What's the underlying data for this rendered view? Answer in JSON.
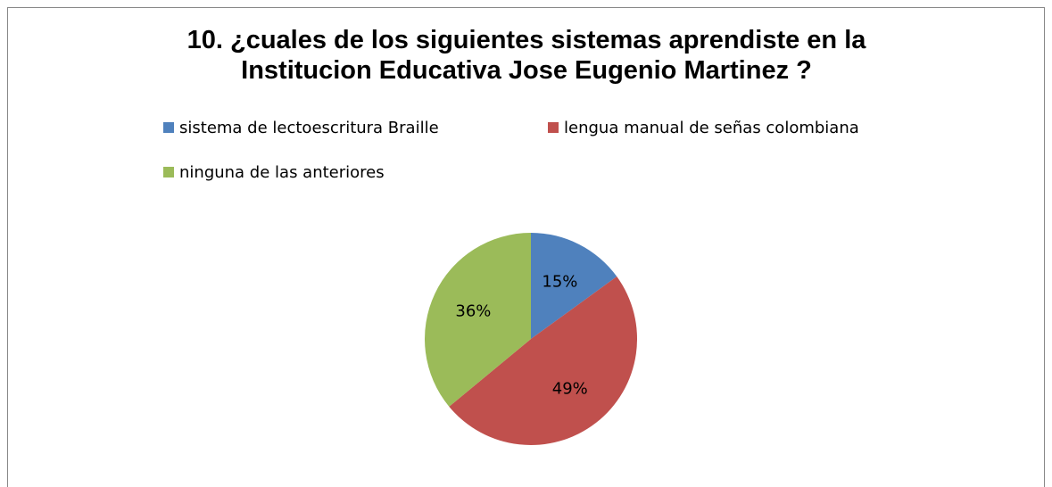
{
  "chart_data": {
    "type": "pie",
    "title": "10. ¿cuales de los siguientes sistemas aprendiste en la Institucion Educativa Jose Eugenio Martinez ?",
    "categories": [
      "sistema de lectoescritura Braille",
      "lengua manual de señas colombiana",
      "ninguna de las anteriores"
    ],
    "values": [
      15,
      49,
      36
    ],
    "value_labels": [
      "15%",
      "49%",
      "36%"
    ],
    "colors": [
      "#4f81bd",
      "#c0504d",
      "#9bbb59"
    ],
    "legend": "top"
  }
}
